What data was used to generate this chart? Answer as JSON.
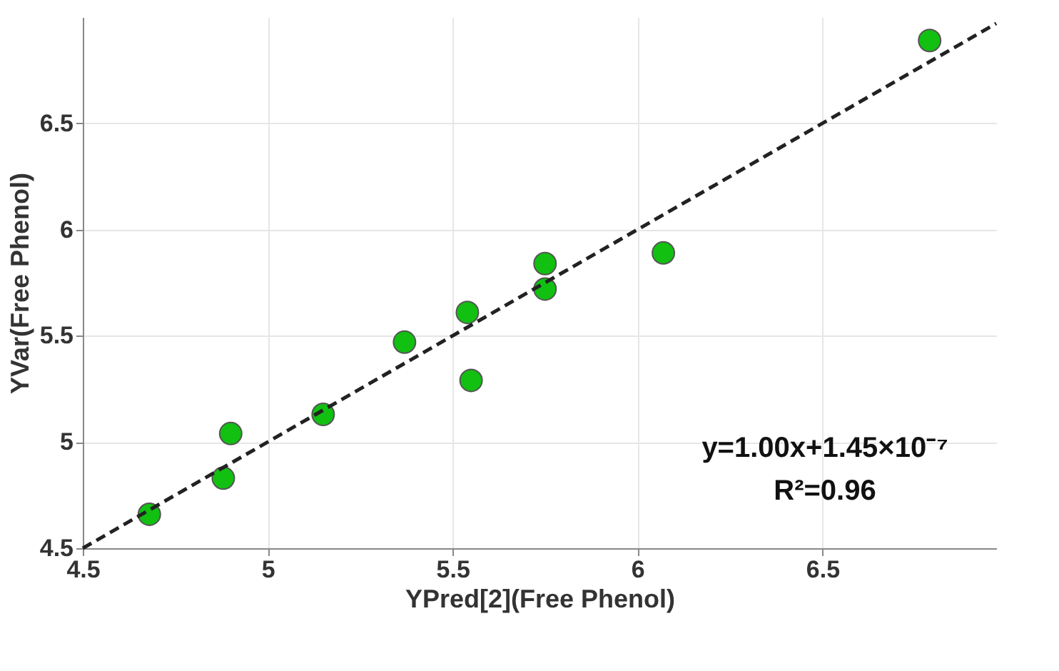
{
  "chart_data": {
    "type": "scatter",
    "xlabel": "YPred[2](Free Phenol)",
    "ylabel": "YVar(Free Phenol)",
    "x": [
      4.68,
      4.88,
      4.9,
      5.15,
      5.37,
      5.54,
      5.55,
      5.75,
      5.75,
      6.07,
      6.79
    ],
    "series": [
      {
        "name": null,
        "color": "#11c011",
        "values": [
          4.66,
          4.83,
          5.04,
          5.13,
          5.47,
          5.61,
          5.29,
          5.72,
          5.84,
          5.89,
          6.89
        ],
        "marker": "circle"
      },
      {
        "type": "line",
        "color": "#222222",
        "x": [
          4.5,
          6.97
        ],
        "values": [
          4.5,
          6.97
        ],
        "line_style": "dashed"
      }
    ],
    "xlim": [
      4.5,
      6.97
    ],
    "ylim": [
      4.5,
      7.0
    ],
    "xticks": [
      4.5,
      5,
      5.5,
      6,
      6.5
    ],
    "yticks": [
      4.5,
      5,
      5.5,
      6,
      6.5
    ],
    "grid": true,
    "annotations": [
      "y=1.00x+1.45×10⁻⁷",
      "R²=0.96"
    ]
  }
}
